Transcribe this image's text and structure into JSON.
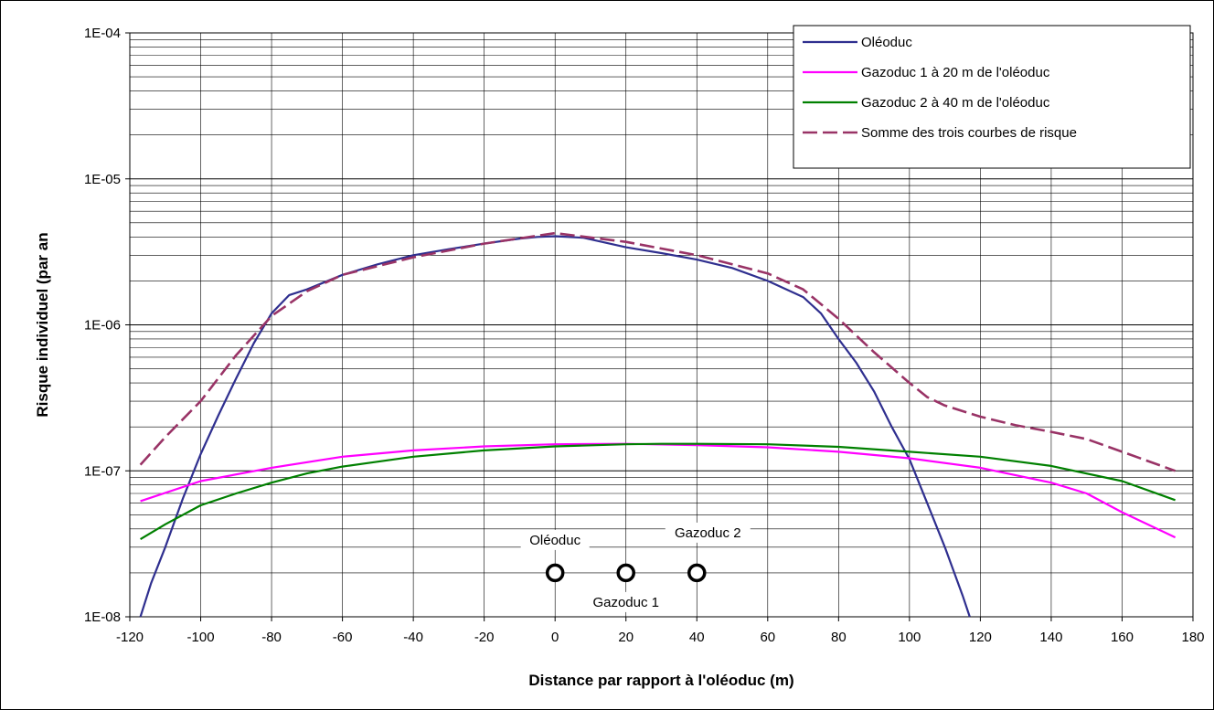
{
  "chart_data": {
    "type": "line",
    "title": "",
    "xlabel": "Distance par rapport à l'oléoduc (m)",
    "ylabel": "Risque individuel (par an",
    "x_ticks": [
      "-120",
      "-100",
      "-80",
      "-60",
      "-40",
      "-20",
      "0",
      "20",
      "40",
      "60",
      "80",
      "100",
      "120",
      "140",
      "160",
      "180"
    ],
    "y_ticks": [
      "1E-08",
      "1E-07",
      "1E-06",
      "1E-05",
      "1E-04"
    ],
    "xlim": [
      -120,
      180
    ],
    "ylim": [
      1e-08,
      0.0001
    ],
    "y_scale": "log",
    "grid": true,
    "legend_position": "top-right",
    "series": [
      {
        "name": "Oléoduc",
        "color": "#2f2f8f",
        "dash": "solid",
        "x": [
          -117,
          -114,
          -110,
          -105,
          -100,
          -95,
          -90,
          -85,
          -80,
          -75,
          -70,
          -60,
          -50,
          -40,
          -30,
          -20,
          -10,
          -5,
          0,
          8,
          20,
          30,
          40,
          50,
          60,
          70,
          75,
          80,
          85,
          90,
          95,
          100,
          105,
          110,
          115,
          117
        ],
        "y": [
          1e-08,
          1.7e-08,
          3e-08,
          6.5e-08,
          1.3e-07,
          2.4e-07,
          4.3e-07,
          7.5e-07,
          1.2e-06,
          1.6e-06,
          1.75e-06,
          2.2e-06,
          2.6e-06,
          3e-06,
          3.3e-06,
          3.6e-06,
          3.9e-06,
          4e-06,
          4.05e-06,
          3.95e-06,
          3.4e-06,
          3.1e-06,
          2.8e-06,
          2.45e-06,
          2e-06,
          1.55e-06,
          1.2e-06,
          8e-07,
          5.5e-07,
          3.5e-07,
          2e-07,
          1.2e-07,
          6e-08,
          3e-08,
          1.4e-08,
          1e-08
        ]
      },
      {
        "name": "Gazoduc 1 à 20 m de l'oléoduc",
        "color": "#ff00ff",
        "dash": "solid",
        "x": [
          -117,
          -100,
          -80,
          -60,
          -40,
          -20,
          0,
          20,
          40,
          60,
          80,
          100,
          120,
          140,
          150,
          160,
          175
        ],
        "y": [
          6.2e-08,
          8.5e-08,
          1.05e-07,
          1.25e-07,
          1.38e-07,
          1.47e-07,
          1.52e-07,
          1.53e-07,
          1.5e-07,
          1.45e-07,
          1.35e-07,
          1.22e-07,
          1.05e-07,
          8.3e-08,
          7e-08,
          5.2e-08,
          3.5e-08
        ]
      },
      {
        "name": "Gazoduc 2 à 40 m de l'oléoduc",
        "color": "#008000",
        "dash": "solid",
        "x": [
          -117,
          -110,
          -100,
          -90,
          -80,
          -70,
          -60,
          -40,
          -20,
          0,
          20,
          30,
          40,
          60,
          80,
          100,
          120,
          140,
          160,
          175
        ],
        "y": [
          3.4e-08,
          4.3e-08,
          5.8e-08,
          7e-08,
          8.3e-08,
          9.6e-08,
          1.07e-07,
          1.25e-07,
          1.38e-07,
          1.47e-07,
          1.52e-07,
          1.53e-07,
          1.53e-07,
          1.52e-07,
          1.46e-07,
          1.35e-07,
          1.25e-07,
          1.08e-07,
          8.5e-08,
          6.3e-08
        ]
      },
      {
        "name": "Somme des trois courbes de risque",
        "color": "#993366",
        "dash": "dashed",
        "x": [
          -117,
          -110,
          -100,
          -90,
          -80,
          -70,
          -60,
          -40,
          -20,
          0,
          20,
          40,
          60,
          70,
          80,
          90,
          100,
          105,
          110,
          120,
          130,
          140,
          150,
          160,
          175
        ],
        "y": [
          1.1e-07,
          1.7e-07,
          3e-07,
          6.2e-07,
          1.15e-06,
          1.7e-06,
          2.2e-06,
          2.9e-06,
          3.6e-06,
          4.25e-06,
          3.7e-06,
          3e-06,
          2.25e-06,
          1.75e-06,
          1.1e-06,
          6.5e-07,
          4e-07,
          3.2e-07,
          2.8e-07,
          2.35e-07,
          2.05e-07,
          1.85e-07,
          1.65e-07,
          1.35e-07,
          1e-07
        ]
      }
    ],
    "annotations": [
      {
        "text": "Oléoduc",
        "x": 0,
        "y": 2e-08
      },
      {
        "text": "Gazoduc 1",
        "x": 20,
        "y": 2e-08
      },
      {
        "text": "Gazoduc 2",
        "x": 40,
        "y": 2e-08
      }
    ]
  }
}
